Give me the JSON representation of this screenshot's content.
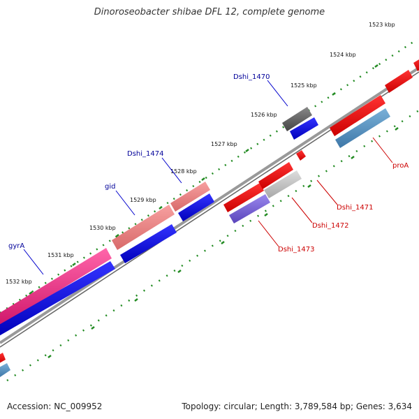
{
  "title": "Dinoroseobacter shibae DFL 12, complete genome",
  "footer": {
    "accession": "Accession: NC_009952",
    "summary": "Topology: circular; Length: 3,789,584 bp; Genes: 3,634"
  },
  "kbp_ticks": [
    "1523 kbp",
    "1524 kbp",
    "1525 kbp",
    "1526 kbp",
    "1527 kbp",
    "1528 kbp",
    "1529 kbp",
    "1530 kbp",
    "1531 kbp",
    "1532 kbp"
  ],
  "gene_labels": [
    "Dshi_1470",
    "Dshi_1474",
    "gid",
    "gyrA",
    "proA",
    "Dshi_1471",
    "Dshi_1472",
    "Dshi_1473"
  ],
  "colors": {
    "forward_label": "#000099",
    "reverse_label": "#cc0000",
    "backbone": "#888888",
    "tick_green": "#228b22"
  }
}
